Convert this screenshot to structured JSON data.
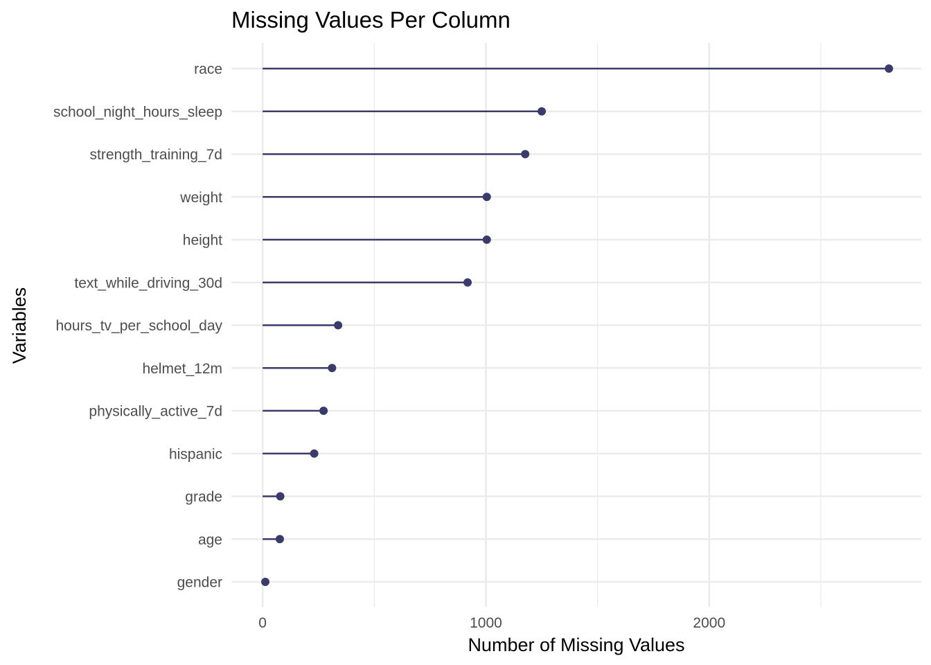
{
  "chart_data": {
    "type": "lollipop",
    "title": "Missing Values Per Column",
    "xlabel": "Number of Missing Values",
    "ylabel": "Variables",
    "xlim": [
      -140,
      2950
    ],
    "xticks": [
      0,
      1000,
      2000
    ],
    "xtick_labels": [
      "0",
      "1000",
      "2000"
    ],
    "grid": true,
    "color": "#3b3b6b",
    "categories": [
      "race",
      "school_night_hours_sleep",
      "strength_training_7d",
      "weight",
      "height",
      "text_while_driving_30d",
      "hours_tv_per_school_day",
      "helmet_12m",
      "physically_active_7d",
      "hispanic",
      "grade",
      "age",
      "gender"
    ],
    "values": [
      2805,
      1250,
      1176,
      1004,
      1004,
      918,
      338,
      311,
      273,
      231,
      79,
      77,
      12
    ]
  }
}
